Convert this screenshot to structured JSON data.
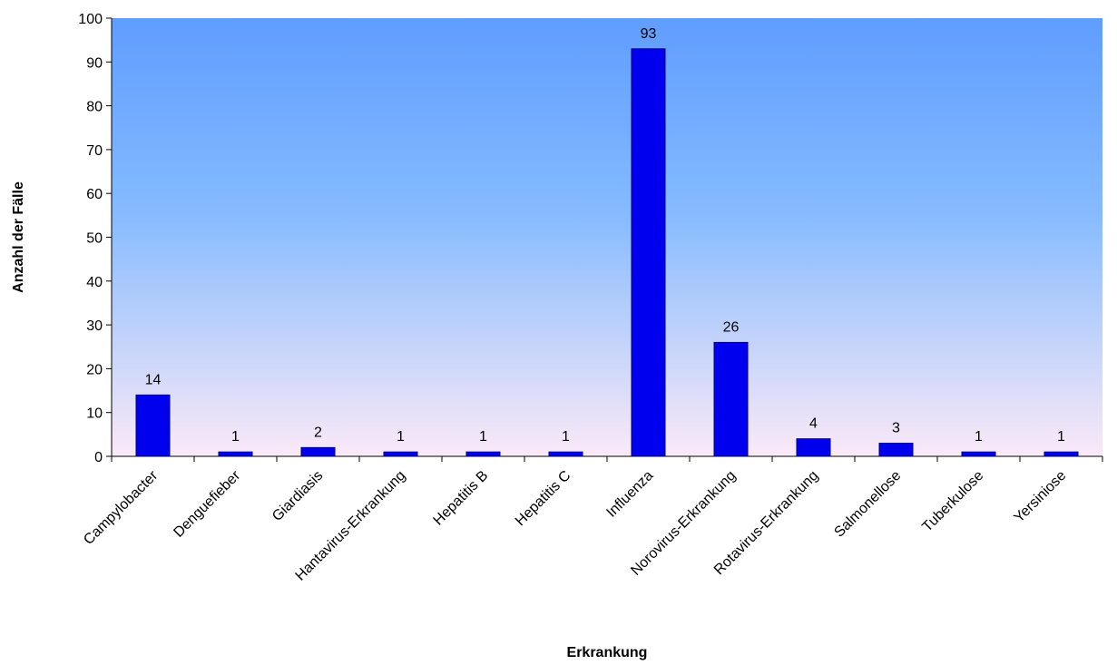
{
  "chart_data": {
    "type": "bar",
    "title": "",
    "xlabel": "Erkrankung",
    "ylabel": "Anzahl der Fälle",
    "ylim": [
      0,
      100
    ],
    "yticks": [
      0,
      10,
      20,
      30,
      40,
      50,
      60,
      70,
      80,
      90,
      100
    ],
    "grid": false,
    "legend": "none",
    "categories": [
      "Campylobacter",
      "Denguefieber",
      "Giardiasis",
      "Hantavirus-Erkrankung",
      "Hepatitis B",
      "Hepatitis C",
      "Influenza",
      "Norovirus-Erkrankung",
      "Rotavirus-Erkrankung",
      "Salmonellose",
      "Tuberkulose",
      "Yersiniose"
    ],
    "values": [
      14,
      1,
      2,
      1,
      1,
      1,
      93,
      26,
      4,
      3,
      1,
      1
    ],
    "colors": {
      "bar": "#0000ee",
      "bar_outline": "#00007a",
      "plot_gradient_top": "#5f9dff",
      "plot_gradient_mid": "#86bbff",
      "plot_gradient_bottom": "#fbe9f7",
      "axis": "#000000"
    }
  }
}
